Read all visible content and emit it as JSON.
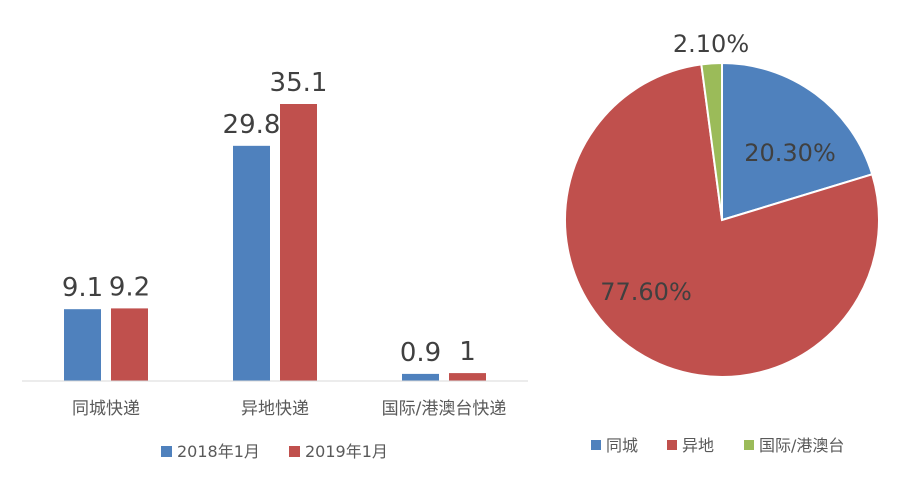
{
  "chart_data": [
    {
      "type": "bar",
      "categories": [
        "同城快递",
        "异地快递",
        "国际/港澳台快递"
      ],
      "series": [
        {
          "name": "2018年1月",
          "values": [
            9.1,
            29.8,
            0.9
          ],
          "labels": [
            "9.1",
            "29.8",
            "0.9"
          ],
          "color": "#4F81BD"
        },
        {
          "name": "2019年1月",
          "values": [
            9.2,
            35.1,
            1.0
          ],
          "labels": [
            "9.2",
            "35.1",
            "1"
          ],
          "color": "#C0504D"
        }
      ],
      "title": "",
      "xlabel": "",
      "ylabel": "",
      "ylim": [
        0,
        40
      ],
      "grid": false,
      "legend": "bottom"
    },
    {
      "type": "pie",
      "categories": [
        "同城",
        "异地",
        "国际/港澳台"
      ],
      "values": [
        20.3,
        77.6,
        2.1
      ],
      "labels": [
        "20.30%",
        "77.60%",
        "2.10%"
      ],
      "colors": [
        "#4F81BD",
        "#C0504D",
        "#9BBB59"
      ],
      "title": "",
      "legend": "bottom"
    }
  ]
}
